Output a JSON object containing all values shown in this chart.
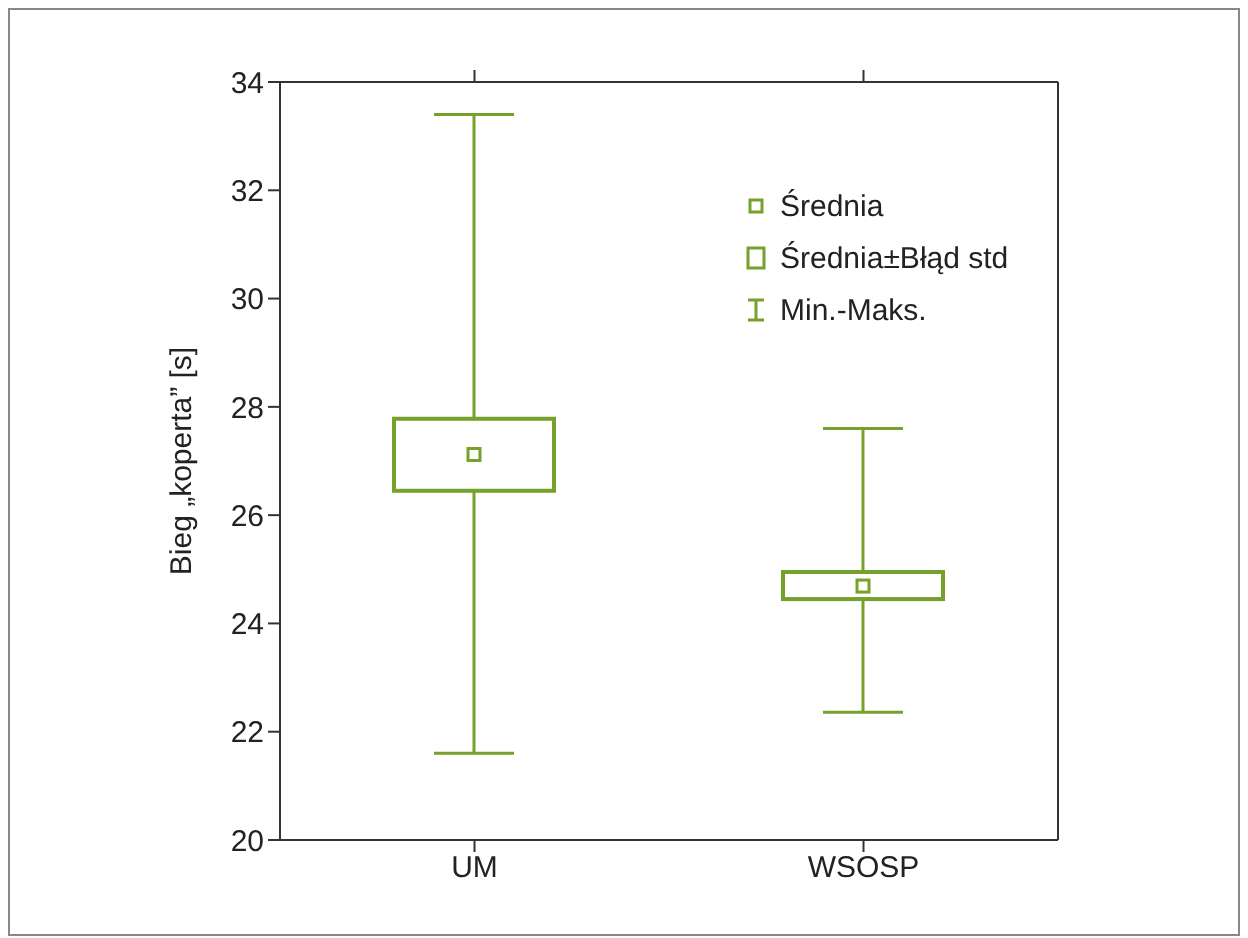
{
  "chart_data": {
    "type": "box",
    "ylabel": "Bieg „koperta” [s]",
    "categories": [
      "UM",
      "WSOSP"
    ],
    "color": "#76a12a",
    "boxes": [
      {
        "low": 21.6,
        "q1": 26.45,
        "median": 27.12,
        "q3": 27.78,
        "high": 33.4
      },
      {
        "low": 22.36,
        "q1": 24.45,
        "median": 24.69,
        "q3": 24.95,
        "high": 27.6
      }
    ],
    "ylim": [
      20,
      34
    ],
    "yticks": [
      20,
      22,
      24,
      26,
      28,
      30,
      32,
      34
    ],
    "annotations": [
      "Średnia",
      "Średnia±Błąd std",
      "Min.-Maks."
    ]
  }
}
